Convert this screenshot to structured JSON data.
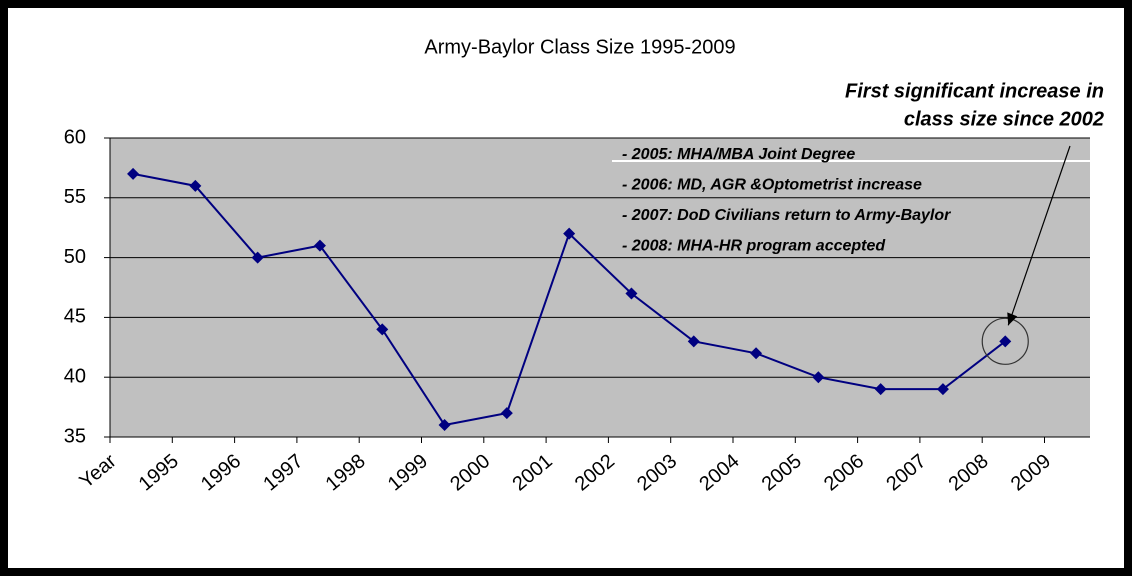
{
  "chart_data": {
    "type": "line",
    "title": "Army-Baylor Class Size 1995-2009",
    "xtick_labels": [
      "Year",
      "1995",
      "1996",
      "1997",
      "1998",
      "1999",
      "2000",
      "2001",
      "2002",
      "2003",
      "2004",
      "2005",
      "2006",
      "2007",
      "2008",
      "2009"
    ],
    "series": [
      {
        "name": "Class Size",
        "color": "#000080",
        "values": [
          57,
          56,
          50,
          51,
          44,
          36,
          37,
          52,
          47,
          43,
          42,
          40,
          39,
          39,
          43
        ]
      }
    ],
    "ylim": [
      35,
      60
    ],
    "yticks": [
      35,
      40,
      45,
      50,
      55,
      60
    ],
    "grid": true,
    "callout": [
      "First significant increase in",
      "class size since 2002"
    ],
    "notes": [
      "- 2005:  MHA/MBA Joint Degree",
      "- 2006:  MD, AGR &Optometrist increase",
      "- 2007:  DoD Civilians return to Army-Baylor",
      "- 2008:  MHA-HR program accepted"
    ]
  }
}
